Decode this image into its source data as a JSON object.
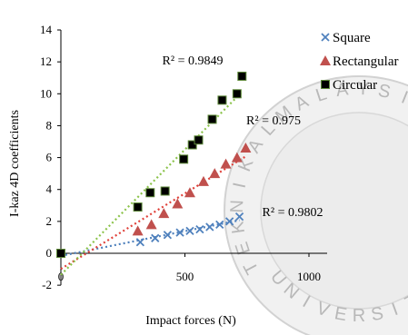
{
  "chart_data": {
    "type": "scatter",
    "title": "",
    "xlabel": "Impact forces (N)",
    "ylabel": "I-kaz 4D coefficients",
    "xlim": [
      0,
      1000
    ],
    "ylim": [
      -2,
      14
    ],
    "x_ticks": [
      "0",
      "500",
      "1000"
    ],
    "y_ticks": [
      "-2",
      "0",
      "2",
      "4",
      "6",
      "8",
      "10",
      "12",
      "14"
    ],
    "grid": false,
    "legend_position": "top-right",
    "origin_point": [
      0,
      0
    ],
    "series": [
      {
        "name": "Square",
        "marker": "x",
        "color": "#4f81bd",
        "trendline": "linear",
        "r2_label": "R² = 0.9802",
        "x": [
          320,
          380,
          430,
          480,
          520,
          560,
          600,
          640,
          680,
          720
        ],
        "y": [
          0.7,
          0.95,
          1.15,
          1.3,
          1.4,
          1.5,
          1.65,
          1.8,
          2.0,
          2.3
        ]
      },
      {
        "name": "Rectangular",
        "marker": "triangle",
        "color": "#c0504d",
        "trendline": "linear",
        "r2_label": "R² = 0.975",
        "x": [
          310,
          365,
          415,
          470,
          520,
          575,
          620,
          665,
          710,
          745
        ],
        "y": [
          1.4,
          1.8,
          2.5,
          3.1,
          3.8,
          4.5,
          5.0,
          5.6,
          6.0,
          6.6
        ]
      },
      {
        "name": "Circular",
        "marker": "square",
        "color": "#000000",
        "trendline": "linear",
        "r2_label": "R² = 0.9849",
        "x": [
          310,
          360,
          420,
          495,
          530,
          555,
          610,
          650,
          710,
          730
        ],
        "y": [
          2.9,
          3.8,
          3.9,
          5.9,
          6.8,
          7.1,
          8.4,
          9.6,
          10.0,
          11.1
        ]
      }
    ]
  },
  "watermark": {
    "text": "TEKNIKAL MALAYSIA",
    "bottom_text": "UNIVERSITI",
    "color": "#b8b8b8"
  }
}
